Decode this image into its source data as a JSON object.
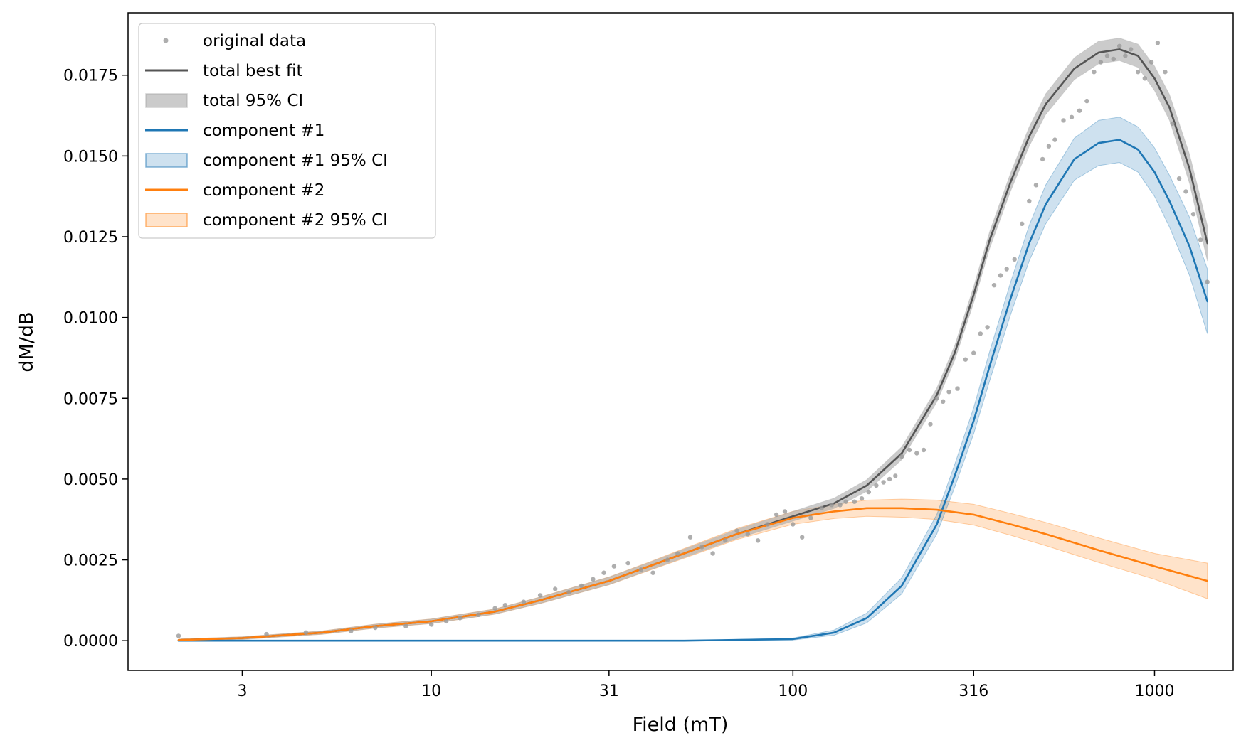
{
  "chart_data": {
    "type": "line",
    "xlabel": "Field (mT)",
    "ylabel": "dM/dB",
    "xscale": "log",
    "xlim": [
      1.45,
      1650
    ],
    "ylim": [
      -0.00092,
      0.01943
    ],
    "x_ticks": [
      3,
      10,
      31,
      100,
      316,
      1000
    ],
    "x_tick_labels": [
      "3",
      "10",
      "31",
      "100",
      "316",
      "1000"
    ],
    "y_ticks": [
      0.0,
      0.0025,
      0.005,
      0.0075,
      0.01,
      0.0125,
      0.015,
      0.0175
    ],
    "y_tick_labels": [
      "0.0000",
      "0.0025",
      "0.0050",
      "0.0075",
      "0.0100",
      "0.0125",
      "0.0150",
      "0.0175"
    ],
    "grid": false,
    "legend_position": "top-left",
    "colors": {
      "total": "#555555",
      "total_ci": "#a9a9a9",
      "component1": "#1f77b4",
      "component2": "#ff7f0e",
      "data": "#9a9a9a"
    },
    "legend": [
      {
        "label": "original data",
        "kind": "scatter",
        "color": "#9a9a9a"
      },
      {
        "label": "total best fit",
        "kind": "line",
        "color": "#555555"
      },
      {
        "label": "total 95% CI",
        "kind": "band",
        "color": "#a9a9a9"
      },
      {
        "label": "component #1",
        "kind": "line",
        "color": "#1f77b4"
      },
      {
        "label": "component #1 95% CI",
        "kind": "band",
        "color": "#1f77b4"
      },
      {
        "label": "component #2",
        "kind": "line",
        "color": "#ff7f0e"
      },
      {
        "label": "component #2 95% CI",
        "kind": "band",
        "color": "#ff7f0e"
      }
    ],
    "series": [
      {
        "name": "component #2",
        "x": [
          2,
          3,
          5,
          7,
          10,
          15,
          20,
          31,
          40,
          50,
          70,
          100,
          130,
          160,
          200,
          250,
          316,
          400,
          500,
          700,
          1000,
          1400
        ],
        "y": [
          2e-05,
          8e-05,
          0.00025,
          0.00045,
          0.0006,
          0.0009,
          0.00125,
          0.00185,
          0.0023,
          0.0027,
          0.0033,
          0.0038,
          0.004,
          0.0041,
          0.0041,
          0.00405,
          0.0039,
          0.0036,
          0.0033,
          0.0028,
          0.0023,
          0.00185
        ],
        "ci_half_width": [
          3e-05,
          4e-05,
          5e-05,
          6e-05,
          7e-05,
          8e-05,
          0.0001,
          0.00012,
          0.00013,
          0.00015,
          0.00017,
          0.0002,
          0.00022,
          0.00025,
          0.00028,
          0.0003,
          0.00032,
          0.00034,
          0.00036,
          0.00038,
          0.0004,
          0.00055
        ]
      },
      {
        "name": "component #1",
        "x": [
          2,
          50,
          100,
          130,
          160,
          200,
          250,
          280,
          316,
          350,
          400,
          450,
          500,
          600,
          700,
          800,
          900,
          1000,
          1100,
          1250,
          1400
        ],
        "y": [
          0.0,
          0.0,
          5e-05,
          0.00025,
          0.0007,
          0.0017,
          0.0036,
          0.0051,
          0.0068,
          0.0085,
          0.0106,
          0.0123,
          0.0135,
          0.0149,
          0.0154,
          0.0155,
          0.0152,
          0.0145,
          0.0136,
          0.0122,
          0.0105
        ],
        "ci_half_width": [
          0.0,
          0.0,
          3e-05,
          8e-05,
          0.00015,
          0.00025,
          0.0003,
          0.00035,
          0.0004,
          0.00045,
          0.0005,
          0.00055,
          0.0006,
          0.00065,
          0.0007,
          0.0007,
          0.0007,
          0.00075,
          0.0008,
          0.0009,
          0.001
        ]
      },
      {
        "name": "total best fit",
        "x": [
          2,
          3,
          5,
          7,
          10,
          15,
          20,
          31,
          40,
          50,
          70,
          100,
          130,
          160,
          200,
          250,
          280,
          316,
          350,
          400,
          450,
          500,
          600,
          700,
          800,
          900,
          1000,
          1100,
          1250,
          1400
        ],
        "y": [
          2e-05,
          8e-05,
          0.00025,
          0.00045,
          0.0006,
          0.0009,
          0.00125,
          0.00185,
          0.0023,
          0.0027,
          0.0033,
          0.00385,
          0.00425,
          0.0048,
          0.0058,
          0.0076,
          0.0089,
          0.0107,
          0.0124,
          0.0142,
          0.0156,
          0.0166,
          0.0177,
          0.0182,
          0.0183,
          0.0181,
          0.0174,
          0.0165,
          0.0146,
          0.0123
        ],
        "ci_half_width": [
          3e-05,
          4e-05,
          5e-05,
          6e-05,
          7e-05,
          8e-05,
          0.0001,
          0.00012,
          0.00012,
          0.00013,
          0.00014,
          0.00015,
          0.00016,
          0.00018,
          0.0002,
          0.00022,
          0.00023,
          0.00025,
          0.00026,
          0.00028,
          0.0003,
          0.00032,
          0.00034,
          0.00035,
          0.00035,
          0.00036,
          0.00038,
          0.0004,
          0.00045,
          0.00055
        ]
      }
    ],
    "scatter": {
      "name": "original data",
      "x": [
        2,
        3.5,
        4.5,
        6,
        7,
        8.5,
        10,
        11,
        12,
        13.5,
        15,
        16,
        18,
        20,
        22,
        24,
        26,
        28,
        30,
        32,
        35,
        38,
        41,
        45,
        48,
        52,
        56,
        60,
        65,
        70,
        75,
        80,
        85,
        90,
        95,
        100,
        106,
        112,
        120,
        128,
        135,
        140,
        148,
        155,
        162,
        170,
        178,
        185,
        192,
        200,
        210,
        220,
        230,
        240,
        250,
        260,
        270,
        285,
        300,
        316,
        330,
        345,
        360,
        375,
        390,
        410,
        430,
        450,
        470,
        490,
        510,
        530,
        560,
        590,
        620,
        650,
        680,
        710,
        740,
        770,
        800,
        830,
        860,
        900,
        940,
        980,
        1020,
        1070,
        1120,
        1170,
        1220,
        1280,
        1340,
        1400
      ],
      "y": [
        0.00015,
        0.0002,
        0.00025,
        0.0003,
        0.0004,
        0.00045,
        0.0005,
        0.0006,
        0.0007,
        0.0008,
        0.001,
        0.0011,
        0.0012,
        0.0014,
        0.0016,
        0.0015,
        0.0017,
        0.0019,
        0.0021,
        0.0023,
        0.0024,
        0.0022,
        0.0021,
        0.0025,
        0.0027,
        0.0032,
        0.0029,
        0.0027,
        0.0031,
        0.0034,
        0.0033,
        0.0031,
        0.0036,
        0.0039,
        0.004,
        0.0036,
        0.0032,
        0.0038,
        0.0041,
        0.0042,
        0.0042,
        0.0043,
        0.0043,
        0.0044,
        0.0046,
        0.0048,
        0.0049,
        0.005,
        0.0051,
        0.0057,
        0.0059,
        0.0058,
        0.0059,
        0.0067,
        0.0075,
        0.0074,
        0.0077,
        0.0078,
        0.0087,
        0.0089,
        0.0095,
        0.0097,
        0.011,
        0.0113,
        0.0115,
        0.0118,
        0.0129,
        0.0136,
        0.0141,
        0.0149,
        0.0153,
        0.0155,
        0.0161,
        0.0162,
        0.0164,
        0.0167,
        0.0176,
        0.0179,
        0.0181,
        0.018,
        0.0184,
        0.0181,
        0.0183,
        0.0176,
        0.0174,
        0.0179,
        0.0185,
        0.0176,
        0.016,
        0.0143,
        0.0139,
        0.0132,
        0.0124,
        0.0111
      ]
    }
  }
}
